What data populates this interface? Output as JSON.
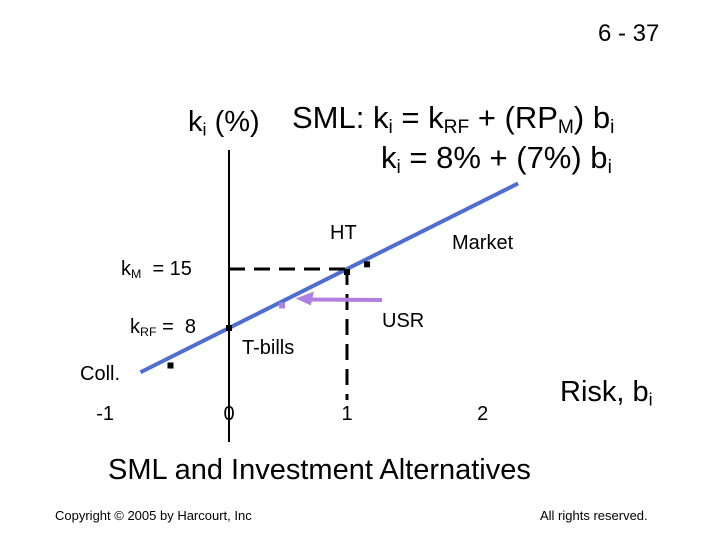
{
  "slide": {
    "number": "6 - 37",
    "y_axis_label": {
      "k": "k",
      "sub": "i",
      "unit": "(%)"
    },
    "equation1": {
      "a": "SML: k",
      "s1": "i",
      "b": " = k",
      "s2": "RF",
      "c": " + (RP",
      "s3": "M",
      "d": ") b",
      "s4": "i"
    },
    "equation2": {
      "a": "k",
      "s1": "i",
      "b": " = 8% + (7%) b",
      "s2": "i"
    },
    "km_label": {
      "k": "k",
      "sub": "M",
      "rest": "  = 15"
    },
    "krf_label": {
      "k": "k",
      "sub": "RF",
      "rest": " =  8"
    },
    "x_axis_label": {
      "text": "Risk, b",
      "sub": "i"
    },
    "subtitle": "SML and Investment Alternatives",
    "copyright": "Copyright © 2005 by Harcourt, Inc",
    "rights": "All rights reserved."
  },
  "chart_data": {
    "type": "scatter",
    "line": {
      "label": "SML",
      "intercept": 8,
      "slope": 7
    },
    "x_ticks": [
      "-1",
      "0",
      "1",
      "2"
    ],
    "points": [
      {
        "name": "HT",
        "beta": 1.13
      },
      {
        "name": "Market",
        "beta": 1.0
      },
      {
        "name": "USR",
        "beta": 0.45
      },
      {
        "name": "T-bills",
        "beta": 0.0
      },
      {
        "name": "Coll.",
        "beta": -0.5
      }
    ],
    "point_labels": {
      "HT": "HT",
      "Market": "Market",
      "USR": "USR",
      "T-bills": "T-bills",
      "Coll.": "Coll."
    },
    "colors": {
      "line": "#4f6fd0",
      "points": "#000000",
      "usr_point": "#b080e0",
      "usr_arrow": "#b080e0"
    }
  }
}
